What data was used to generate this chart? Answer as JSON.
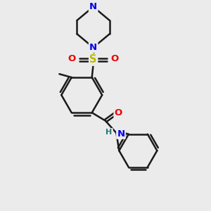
{
  "background_color": "#ebebeb",
  "bond_color": "#1a1a1a",
  "bond_width": 1.8,
  "atom_colors": {
    "N": "#0000ee",
    "O": "#ee0000",
    "S": "#bbbb00",
    "C": "#1a1a1a",
    "H": "#227777"
  },
  "font_size": 8.5,
  "dpi": 100,
  "fig_size": [
    3.0,
    3.0
  ]
}
